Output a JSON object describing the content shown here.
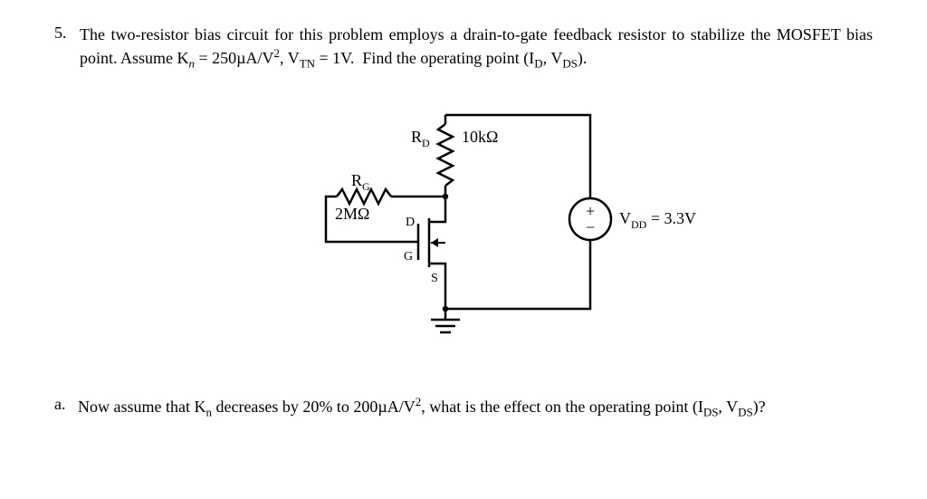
{
  "problem": {
    "number": "5.",
    "stem_html": "The two-resistor bias circuit for this problem employs a drain-to-gate feedback resistor to stabilize the MOSFET bias point. Assume K<sub><span class='ital'>n</span></sub> = 250µA/V<sup>2</sup>, V<sub>TN</sub> = 1V.&nbsp; Find the operating point (I<sub>D</sub>, V<sub>DS</sub>)."
  },
  "diagram": {
    "rd_name": "R",
    "rd_sub": "D",
    "rd_value": "10kΩ",
    "rg_name": "R",
    "rg_sub": "G",
    "rg_value": "2MΩ",
    "vdd_label": "V",
    "vdd_sub": "DD",
    "vdd_value": " = 3.3V",
    "pins": {
      "D": "D",
      "G": "G",
      "S": "S"
    },
    "src_plus": "+",
    "src_minus": "−",
    "colors": {
      "stroke": "#000000",
      "bg": "#ffffff"
    }
  },
  "parta": {
    "letter": "a.",
    "text_html": "Now assume that K<sub>n</sub> decreases by 20% to 200µA/V<sup>2</sup>, what is the effect on the operating point (I<sub>DS</sub>, V<sub>DS</sub>)?"
  }
}
